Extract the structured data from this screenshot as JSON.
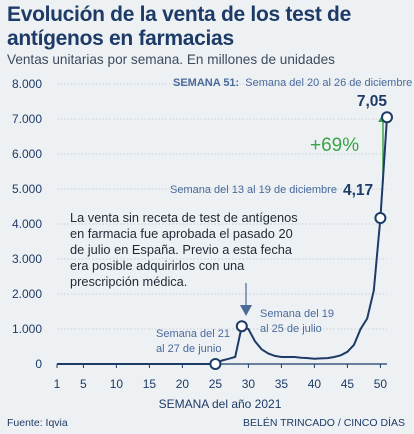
{
  "header": {
    "title": "Evolución de la venta de los test de antígenos en farmacias",
    "subtitle": "Ventas unitarias por semana. En millones de unidades"
  },
  "footer": {
    "source": "Fuente: Iqvia",
    "credit": "BELÉN TRINCADO / CINCO DÍAS"
  },
  "colors": {
    "line": "#1d3b66",
    "grid": "#b9c3ce",
    "accent_green": "#3aa447",
    "annotation": "#4a6a9a",
    "marker_fill": "#ffffff"
  },
  "annotations": {
    "week51_label": "SEMANA 51:",
    "week51_text": "Semana del 20 al 26 de diciembre",
    "week51_value": "7,05",
    "week50_text": "Semana del 13 al 19 de diciembre",
    "week50_value": "4,17",
    "growth": "+69%",
    "week25_line1": "Semana del 21",
    "week25_line2": "al 27 de junio",
    "week29_line1": "Semana del 19",
    "week29_line2": "al 25 de julio",
    "note_lines": [
      "La venta sin receta de test de antígenos",
      "en farmacia fue aprobada el pasado 20",
      "de julio en España. Previo a esta fecha",
      "era posible adquirirlos con una",
      "prescripción médica."
    ]
  },
  "chart_data": {
    "type": "line",
    "title": "Evolución de la venta de los test de antígenos en farmacias",
    "subtitle": "Ventas unitarias por semana. En millones de unidades",
    "xlabel": "SEMANA del año 2021",
    "ylabel": "",
    "xlim": [
      1,
      51
    ],
    "ylim": [
      0,
      8000
    ],
    "x_ticks": [
      1,
      5,
      10,
      15,
      20,
      25,
      30,
      35,
      40,
      45,
      50
    ],
    "y_ticks": [
      0,
      1000,
      2000,
      3000,
      4000,
      5000,
      6000,
      7000,
      8000
    ],
    "y_tick_labels": [
      "0",
      "1.000",
      "2.000",
      "3.000",
      "4.000",
      "5.000",
      "6.000",
      "7.000",
      "8.000"
    ],
    "grid": "horizontal",
    "series": [
      {
        "x": [
          1,
          25,
          26,
          27,
          28,
          29,
          30,
          31,
          32,
          33,
          34,
          35,
          36,
          37,
          38,
          39,
          40,
          41,
          42,
          43,
          44,
          45,
          46,
          47,
          48,
          49,
          50,
          51
        ],
        "y": [
          0,
          0,
          100,
          150,
          200,
          1080,
          1000,
          650,
          420,
          300,
          230,
          200,
          200,
          200,
          180,
          170,
          150,
          160,
          170,
          200,
          250,
          350,
          550,
          1000,
          1300,
          2100,
          4170,
          7050
        ]
      }
    ],
    "highlighted_points": [
      {
        "x": 25,
        "y": 0
      },
      {
        "x": 29,
        "y": 1080
      },
      {
        "x": 50,
        "y": 4170
      },
      {
        "x": 51,
        "y": 7050
      }
    ]
  }
}
